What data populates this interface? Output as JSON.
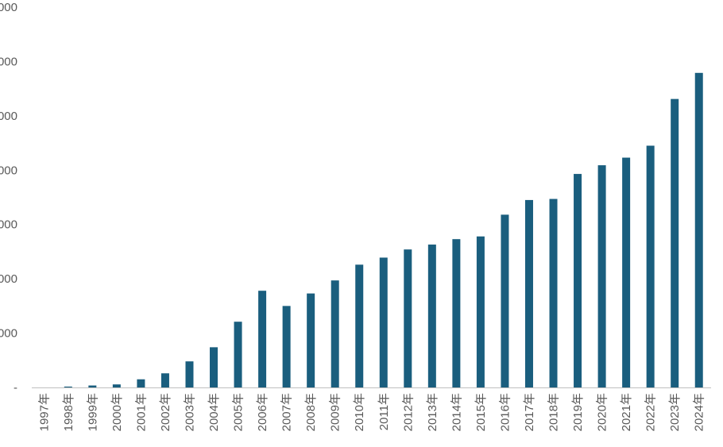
{
  "chart_data": {
    "type": "bar",
    "categories": [
      "1997年",
      "1998年",
      "1999年",
      "2000年",
      "2001年",
      "2002年",
      "2003年",
      "2004年",
      "2005年",
      "2006年",
      "2007年",
      "2008年",
      "2009年",
      "2010年",
      "2011年",
      "2012年",
      "2013年",
      "2014年",
      "2015年",
      "2016年",
      "2017年",
      "2018年",
      "2019年",
      "2020年",
      "2021年",
      "2022年",
      "2023年",
      "2024年"
    ],
    "values": [
      0,
      8,
      18,
      28,
      75,
      130,
      240,
      370,
      605,
      890,
      750,
      865,
      985,
      1130,
      1195,
      1270,
      1315,
      1365,
      1390,
      1590,
      1725,
      1735,
      1965,
      2045,
      2115,
      2225,
      2655,
      2895
    ],
    "ytick_labels": [
      "-",
      "000",
      "000",
      "000",
      "000",
      "000",
      "000",
      "000"
    ],
    "ytick_values": [
      0,
      500,
      1000,
      1500,
      2000,
      2500,
      3000,
      3500
    ],
    "ylim": [
      0,
      3500
    ],
    "bar_color": "#1a5e7e",
    "axis_color": "#bfbfbf",
    "title": "",
    "xlabel": "",
    "ylabel": "",
    "grid": false,
    "legend": "none"
  }
}
